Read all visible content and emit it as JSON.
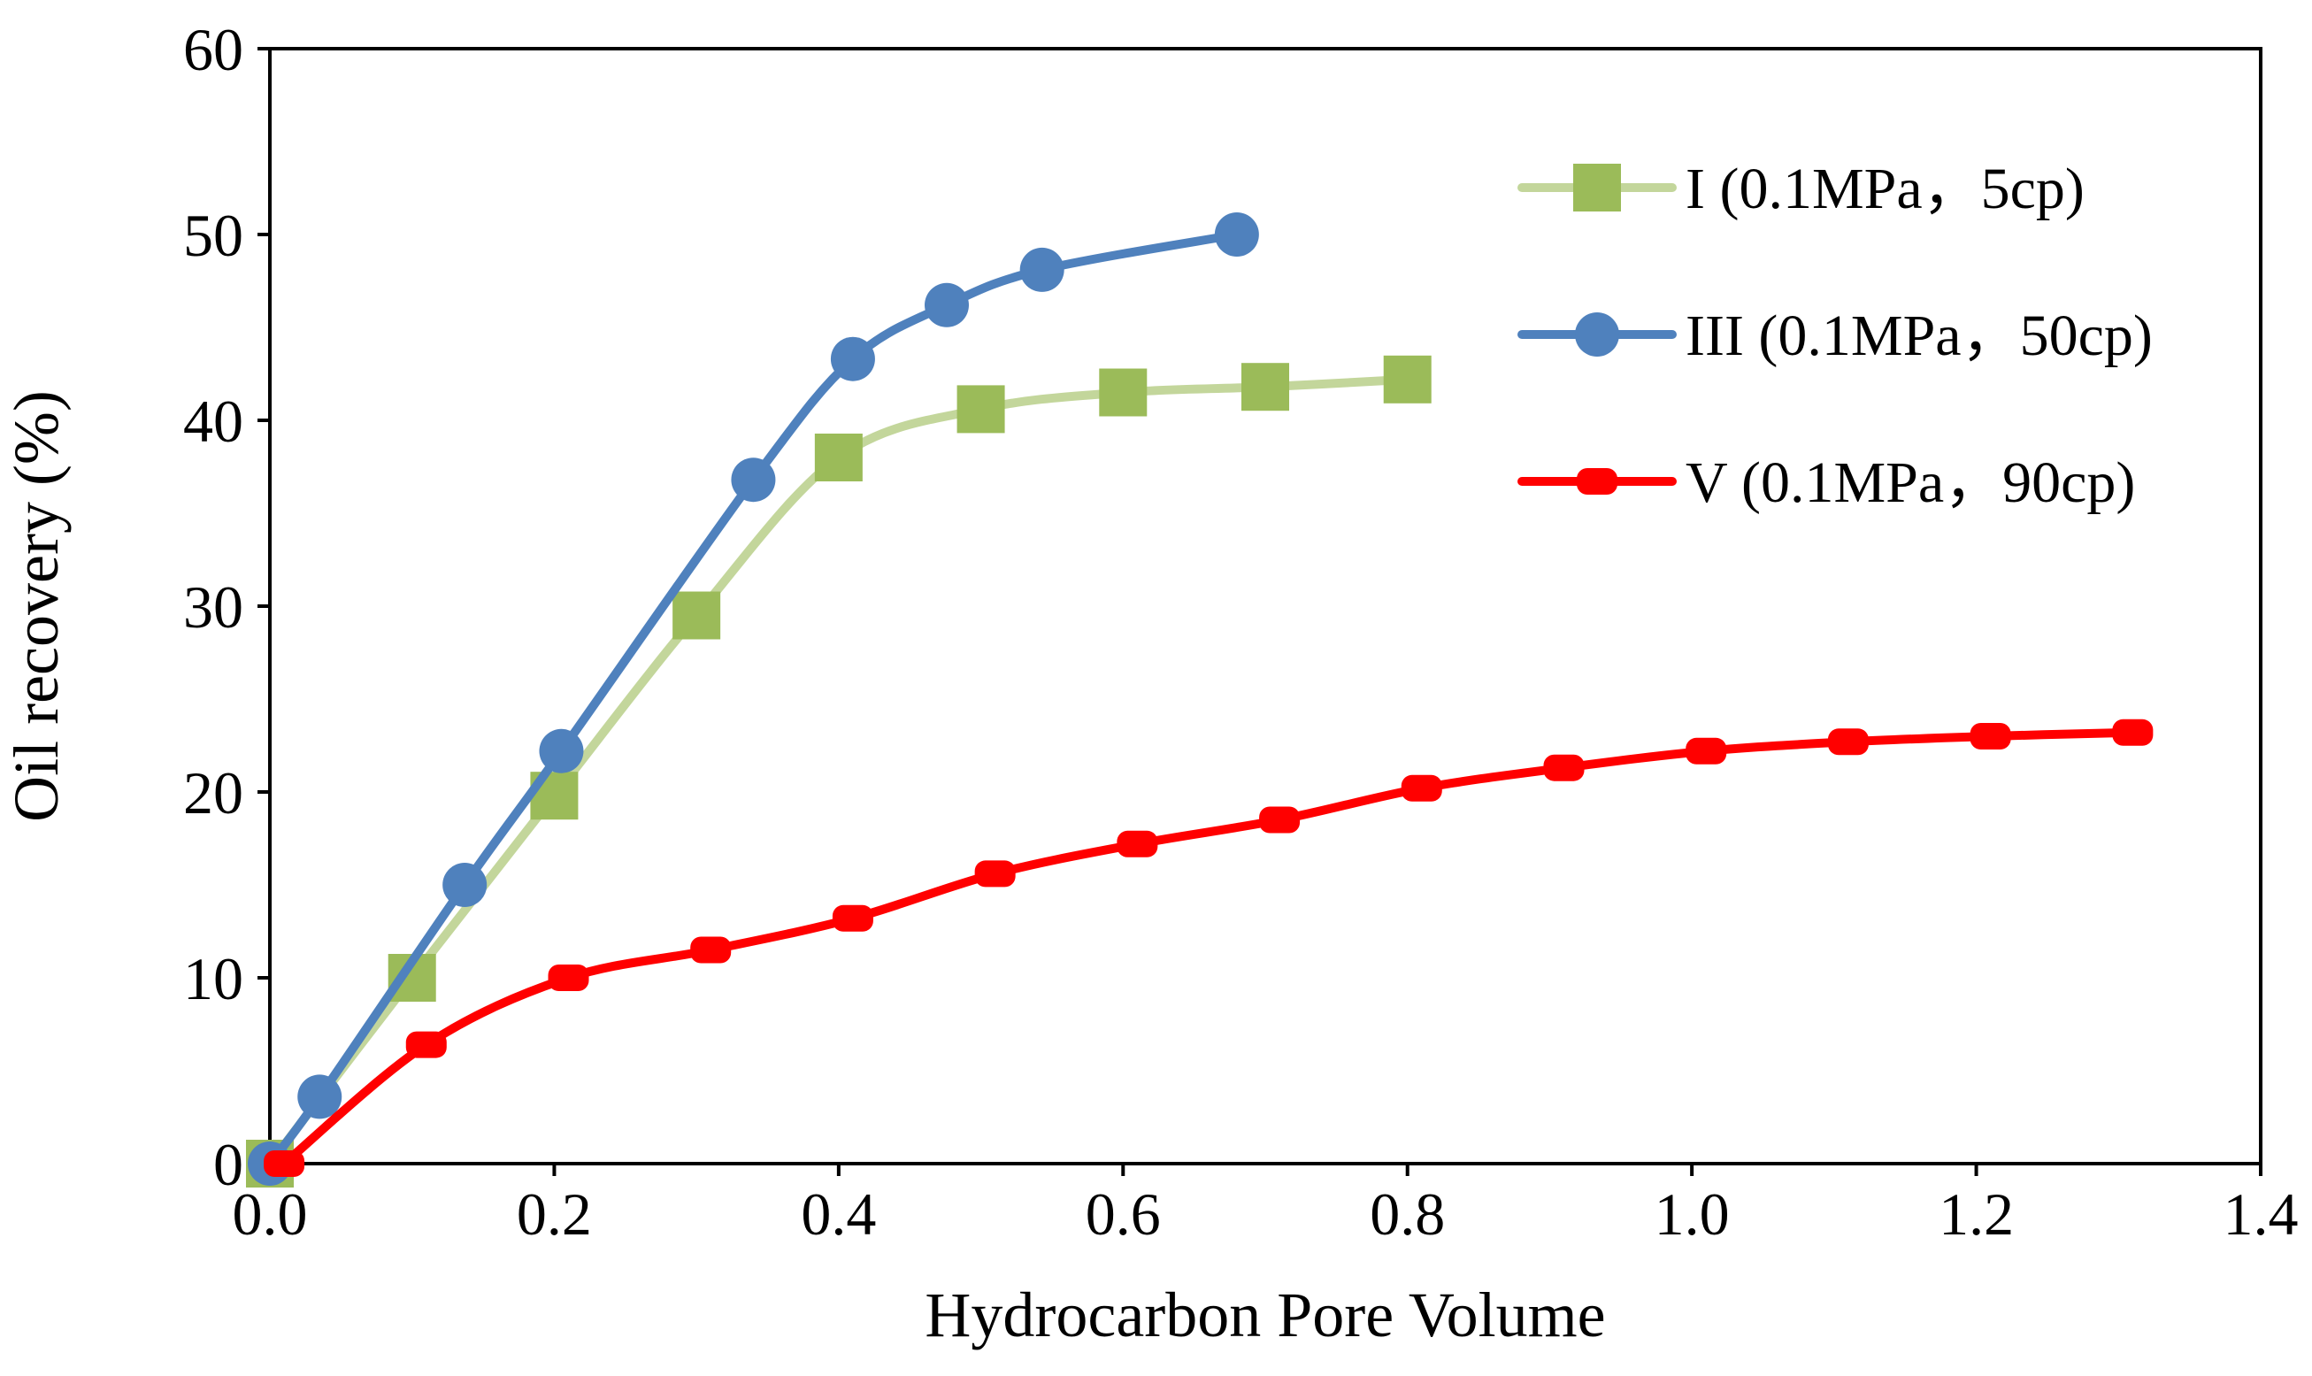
{
  "chart_data": {
    "type": "line",
    "title": "",
    "xlabel": "Hydrocarbon Pore Volume",
    "ylabel": "Oil recovery (%)",
    "xlim": [
      0,
      1.4
    ],
    "ylim": [
      0,
      60
    ],
    "xticks": [
      "0.0",
      "0.2",
      "0.4",
      "0.6",
      "0.8",
      "1.0",
      "1.2",
      "1.4"
    ],
    "yticks": [
      "0",
      "10",
      "20",
      "30",
      "40",
      "50",
      "60"
    ],
    "grid": false,
    "legend_position": "top-right",
    "series": [
      {
        "name": "I (0.1MPa，5cp)",
        "color": "#C3D69B",
        "marker_color": "#9BBB59",
        "marker": "square",
        "x": [
          0.0,
          0.1,
          0.2,
          0.3,
          0.4,
          0.5,
          0.6,
          0.7,
          0.8
        ],
        "y": [
          0.0,
          10.0,
          19.8,
          29.5,
          38.0,
          40.6,
          41.5,
          41.8,
          42.2
        ]
      },
      {
        "name": "III (0.1MPa，50cp)",
        "color": "#4F81BD",
        "marker_color": "#4F81BD",
        "marker": "circle",
        "x": [
          0.0,
          0.035,
          0.137,
          0.205,
          0.34,
          0.41,
          0.476,
          0.543,
          0.68
        ],
        "y": [
          0.0,
          3.6,
          15.0,
          22.2,
          36.8,
          43.3,
          46.2,
          48.1,
          50.0
        ]
      },
      {
        "name": "V (0.1MPa，90cp)",
        "color": "#FF0000",
        "marker_color": "#FF0000",
        "marker": "dash",
        "x": [
          0.01,
          0.11,
          0.21,
          0.31,
          0.41,
          0.51,
          0.61,
          0.71,
          0.81,
          0.91,
          1.01,
          1.11,
          1.21,
          1.31
        ],
        "y": [
          0.0,
          6.4,
          10.0,
          11.5,
          13.2,
          15.6,
          17.2,
          18.5,
          20.2,
          21.3,
          22.2,
          22.7,
          23.0,
          23.2
        ]
      }
    ]
  }
}
